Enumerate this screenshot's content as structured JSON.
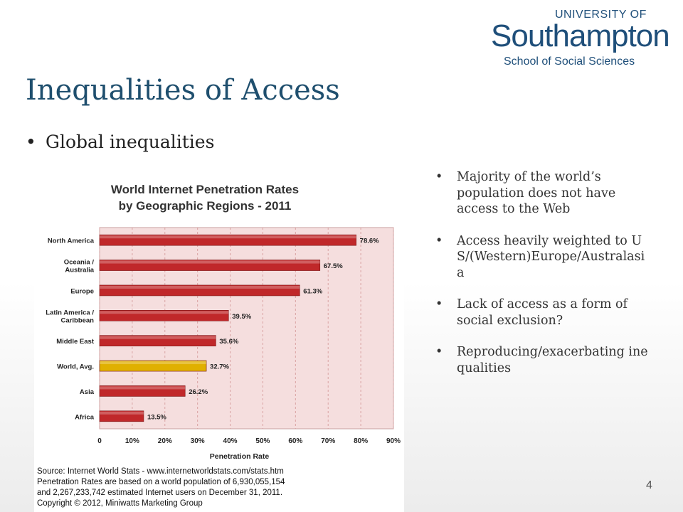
{
  "header": {
    "title": "Inequalities of Access",
    "bullet": "Global inequalities",
    "logo": {
      "top": "UNIVERSITY OF",
      "name": "Southampton",
      "school": "School of Social Sciences"
    }
  },
  "right_bullets": [
    "Majority of the world’s population does not have access to the Web",
    "Access heavily weighted to US/(Western)Europe/Australasia",
    "Lack of access as a form of social exclusion?",
    "Reproducing/exacerbating inequalities"
  ],
  "page_number": "4",
  "chart_data": {
    "type": "bar",
    "orientation": "horizontal",
    "title_line1": "World Internet Penetration Rates",
    "title_line2": "by Geographic Regions - 2011",
    "xlabel": "Penetration Rate",
    "categories": [
      "North America",
      "Oceania / Australia",
      "Europe",
      "Latin America / Caribbean",
      "Middle East",
      "World, Avg.",
      "Asia",
      "Africa"
    ],
    "category_lines": [
      [
        "North America"
      ],
      [
        "Oceania /",
        "Australia"
      ],
      [
        "Europe"
      ],
      [
        "Latin America /",
        "Caribbean"
      ],
      [
        "Middle East"
      ],
      [
        "World, Avg."
      ],
      [
        "Asia"
      ],
      [
        "Africa"
      ]
    ],
    "values": [
      78.6,
      67.5,
      61.3,
      39.5,
      35.6,
      32.7,
      26.2,
      13.5
    ],
    "value_labels": [
      "78.6%",
      "67.5%",
      "61.3%",
      "39.5%",
      "35.6%",
      "32.7%",
      "26.2%",
      "13.5%"
    ],
    "bar_colors": [
      "#c0282a",
      "#c0282a",
      "#c0282a",
      "#c0282a",
      "#c0282a",
      "#e0b000",
      "#c0282a",
      "#c0282a"
    ],
    "xlim": [
      0,
      90
    ],
    "xticks": [
      "0",
      "10%",
      "20%",
      "30%",
      "40%",
      "50%",
      "60%",
      "70%",
      "80%",
      "90%"
    ],
    "plot_background": "#f5dede",
    "footer": [
      "Source: Internet World Stats - www.internetworldstats.com/stats.htm",
      "Penetration Rates are based on a world population of 6,930,055,154",
      "and 2,267,233,742 estimated Internet users on December 31, 2011.",
      "Copyright © 2012, Miniwatts Marketing Group"
    ]
  }
}
